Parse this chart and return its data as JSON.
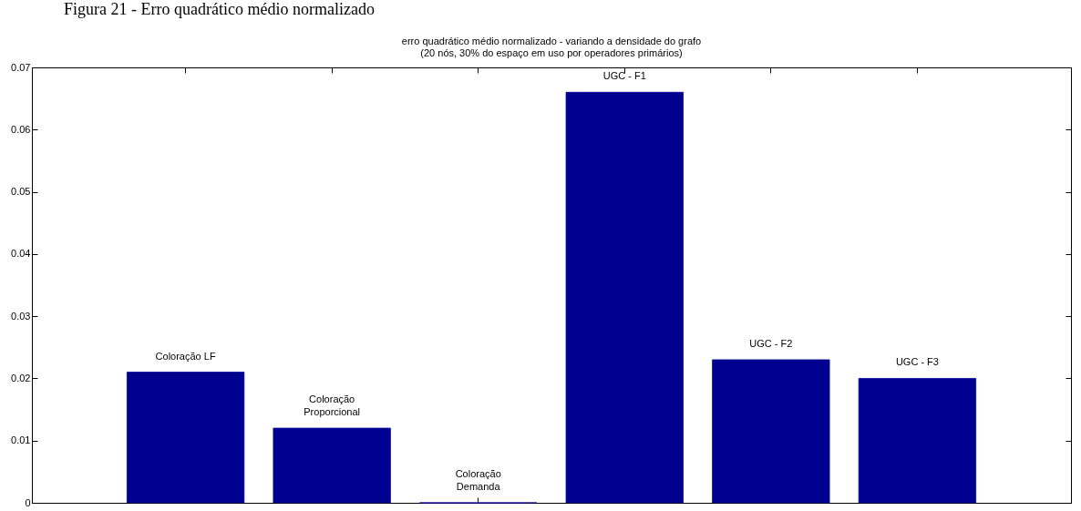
{
  "chart_data": {
    "type": "bar",
    "title": "Figura 21 - Erro quadrático médio normalizado",
    "subtitle": "erro quadrático médio normalizado - variando a densidade do grafo\n(20 nós, 30% do espaço em uso por operadores primários)",
    "categories": [
      "Coloração LF",
      "Coloração\nProporcional",
      "Coloração\nDemanda",
      "UGC - F1",
      "UGC - F2",
      "UGC - F3"
    ],
    "values": [
      0.021,
      0.012,
      0,
      0.066,
      0.023,
      0.02
    ],
    "color": "#000090",
    "ylim": [
      0,
      0.07
    ],
    "yticks": [
      0,
      0.01,
      0.02,
      0.03,
      0.04,
      0.05,
      0.06,
      0.07
    ],
    "tick_labels": "y"
  }
}
